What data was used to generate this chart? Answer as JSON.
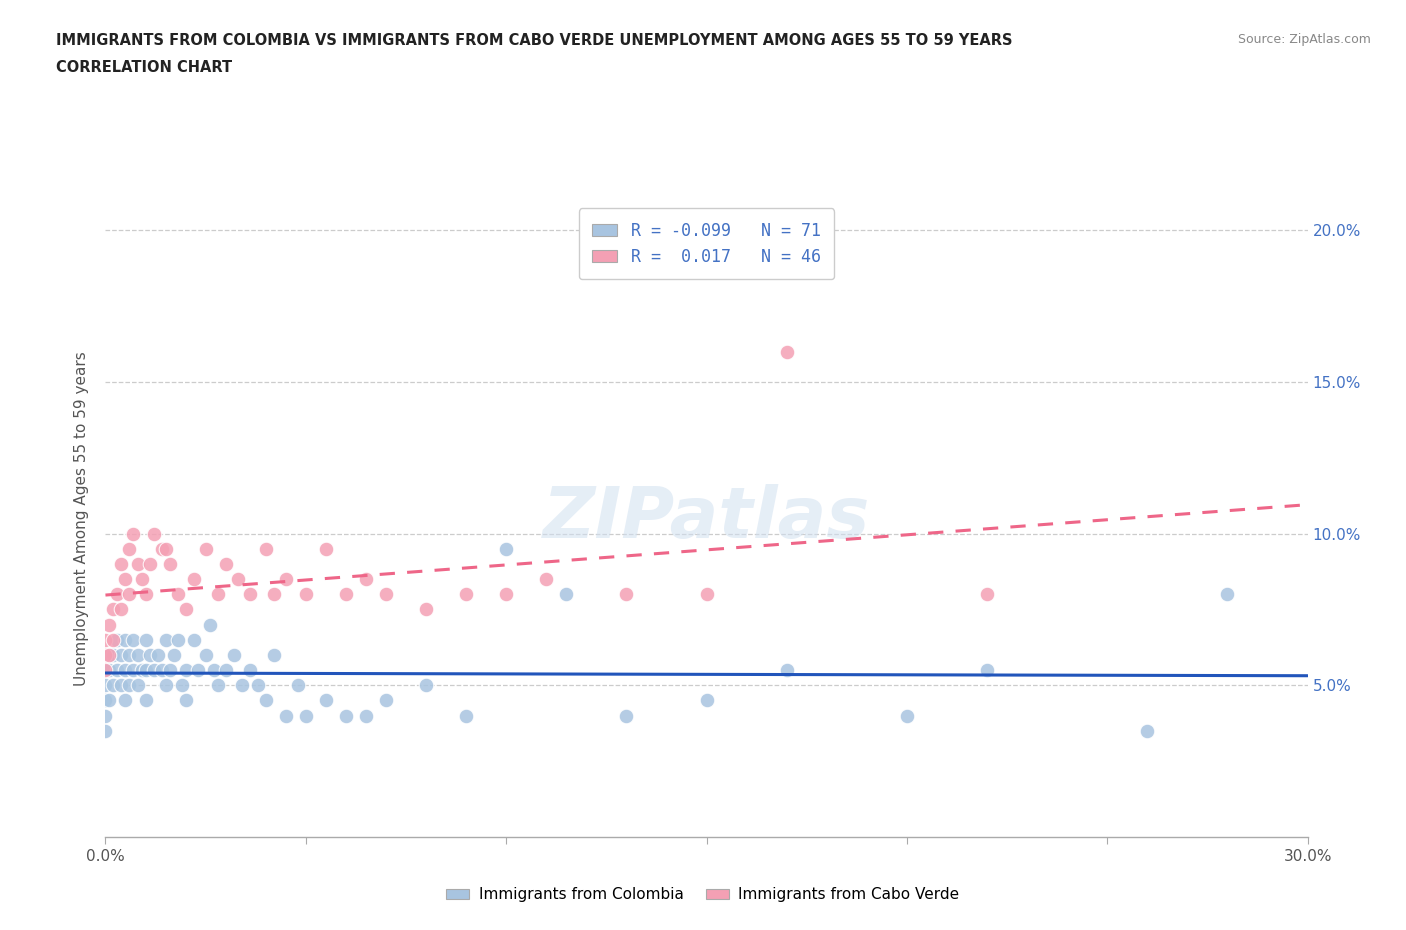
{
  "title_line1": "IMMIGRANTS FROM COLOMBIA VS IMMIGRANTS FROM CABO VERDE UNEMPLOYMENT AMONG AGES 55 TO 59 YEARS",
  "title_line2": "CORRELATION CHART",
  "source_text": "Source: ZipAtlas.com",
  "ylabel": "Unemployment Among Ages 55 to 59 years",
  "xlim": [
    0.0,
    0.3
  ],
  "ylim": [
    0.0,
    0.21
  ],
  "colombia_color": "#a8c4e0",
  "cabo_verde_color": "#f4a0b4",
  "colombia_line_color": "#2255bb",
  "cabo_verde_line_color": "#ee6688",
  "colombia_R": -0.099,
  "colombia_N": 71,
  "cabo_verde_R": 0.017,
  "cabo_verde_N": 46,
  "watermark_text": "ZIPatlas",
  "colombia_x": [
    0.0,
    0.0,
    0.0,
    0.0,
    0.0,
    0.0,
    0.001,
    0.001,
    0.001,
    0.002,
    0.002,
    0.003,
    0.003,
    0.004,
    0.004,
    0.005,
    0.005,
    0.005,
    0.006,
    0.006,
    0.007,
    0.007,
    0.008,
    0.008,
    0.009,
    0.01,
    0.01,
    0.01,
    0.011,
    0.012,
    0.013,
    0.014,
    0.015,
    0.015,
    0.016,
    0.017,
    0.018,
    0.019,
    0.02,
    0.02,
    0.022,
    0.023,
    0.025,
    0.026,
    0.027,
    0.028,
    0.03,
    0.032,
    0.034,
    0.036,
    0.038,
    0.04,
    0.042,
    0.045,
    0.048,
    0.05,
    0.055,
    0.06,
    0.065,
    0.07,
    0.08,
    0.09,
    0.1,
    0.115,
    0.13,
    0.15,
    0.17,
    0.2,
    0.22,
    0.26,
    0.28
  ],
  "colombia_y": [
    0.06,
    0.055,
    0.05,
    0.045,
    0.04,
    0.035,
    0.06,
    0.055,
    0.045,
    0.06,
    0.05,
    0.065,
    0.055,
    0.06,
    0.05,
    0.065,
    0.055,
    0.045,
    0.06,
    0.05,
    0.065,
    0.055,
    0.06,
    0.05,
    0.055,
    0.065,
    0.055,
    0.045,
    0.06,
    0.055,
    0.06,
    0.055,
    0.065,
    0.05,
    0.055,
    0.06,
    0.065,
    0.05,
    0.055,
    0.045,
    0.065,
    0.055,
    0.06,
    0.07,
    0.055,
    0.05,
    0.055,
    0.06,
    0.05,
    0.055,
    0.05,
    0.045,
    0.06,
    0.04,
    0.05,
    0.04,
    0.045,
    0.04,
    0.04,
    0.045,
    0.05,
    0.04,
    0.095,
    0.08,
    0.04,
    0.045,
    0.055,
    0.04,
    0.055,
    0.035,
    0.08
  ],
  "cabo_verde_x": [
    0.0,
    0.0,
    0.0,
    0.001,
    0.001,
    0.002,
    0.002,
    0.003,
    0.004,
    0.004,
    0.005,
    0.006,
    0.006,
    0.007,
    0.008,
    0.009,
    0.01,
    0.011,
    0.012,
    0.014,
    0.015,
    0.016,
    0.018,
    0.02,
    0.022,
    0.025,
    0.028,
    0.03,
    0.033,
    0.036,
    0.04,
    0.042,
    0.045,
    0.05,
    0.055,
    0.06,
    0.065,
    0.07,
    0.08,
    0.09,
    0.1,
    0.11,
    0.13,
    0.15,
    0.17,
    0.22
  ],
  "cabo_verde_y": [
    0.065,
    0.06,
    0.055,
    0.07,
    0.06,
    0.075,
    0.065,
    0.08,
    0.075,
    0.09,
    0.085,
    0.095,
    0.08,
    0.1,
    0.09,
    0.085,
    0.08,
    0.09,
    0.1,
    0.095,
    0.095,
    0.09,
    0.08,
    0.075,
    0.085,
    0.095,
    0.08,
    0.09,
    0.085,
    0.08,
    0.095,
    0.08,
    0.085,
    0.08,
    0.095,
    0.08,
    0.085,
    0.08,
    0.075,
    0.08,
    0.08,
    0.085,
    0.08,
    0.08,
    0.16,
    0.08
  ]
}
